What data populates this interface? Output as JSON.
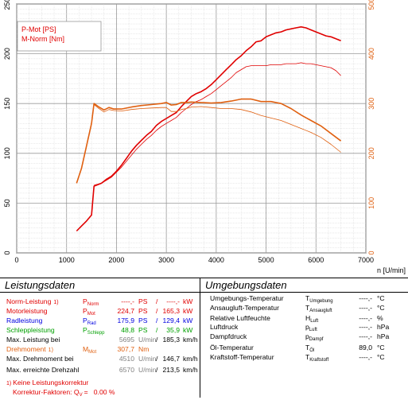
{
  "chart_data": {
    "type": "line",
    "xlabel": "n [U/min]",
    "xlim": [
      0,
      7000
    ],
    "ylim_left": [
      0,
      250
    ],
    "ylim_right": [
      0,
      500
    ],
    "x_ticks": [
      "0",
      "1000",
      "2000",
      "3000",
      "4000",
      "5000",
      "6000",
      "7000"
    ],
    "y_left_ticks": [
      "0",
      "50",
      "100",
      "150",
      "200",
      "250"
    ],
    "y_right_ticks": [
      "0",
      "100",
      "200",
      "300",
      "400",
      "500"
    ],
    "grid": true,
    "legend_position": "top-left",
    "legend": [
      "P-Mot [PS]",
      "M-Norm [Nm]"
    ],
    "series": [
      {
        "name": "P-Mot [PS]",
        "axis": "left",
        "color": "#e00000",
        "width": 1.6,
        "x": [
          1200,
          1300,
          1400,
          1500,
          1550,
          1700,
          1800,
          1900,
          2000,
          2100,
          2200,
          2300,
          2400,
          2500,
          2600,
          2700,
          2800,
          2900,
          3000,
          3100,
          3200,
          3300,
          3400,
          3500,
          3600,
          3700,
          3800,
          3900,
          4000,
          4100,
          4200,
          4300,
          4400,
          4500,
          4600,
          4700,
          4800,
          4900,
          5000,
          5100,
          5200,
          5300,
          5400,
          5500,
          5600,
          5700,
          5800,
          5900,
          6000,
          6100,
          6200,
          6300,
          6400,
          6500
        ],
        "y": [
          22,
          27,
          32,
          38,
          67,
          70,
          74,
          77,
          82,
          88,
          95,
          102,
          108,
          113,
          118,
          122,
          128,
          132,
          135,
          138,
          141,
          147,
          152,
          157,
          160,
          162,
          165,
          169,
          174,
          179,
          184,
          189,
          194,
          198,
          203,
          207,
          212,
          213,
          217,
          219,
          221,
          222,
          224,
          225,
          226,
          227,
          226,
          224,
          222,
          220,
          218,
          217,
          215,
          213
        ]
      },
      {
        "name": "",
        "axis": "left",
        "color": "#e00000",
        "width": 0.8,
        "x": [
          1550,
          1700,
          1800,
          1900,
          2000,
          2100,
          2200,
          2300,
          2400,
          2500,
          2600,
          2700,
          2800,
          2900,
          3000,
          3100,
          3200,
          3300,
          3400,
          3500,
          3600,
          3700,
          3800,
          3900,
          4000,
          4100,
          4200,
          4300,
          4400,
          4500,
          4600,
          4700,
          4800,
          4900,
          5000,
          5100,
          5200,
          5300,
          5400,
          5500,
          5600,
          5700,
          5800,
          5900,
          6000,
          6100,
          6200,
          6300,
          6400,
          6500
        ],
        "y": [
          68,
          70,
          73,
          76,
          81,
          86,
          92,
          98,
          104,
          109,
          114,
          118,
          123,
          127,
          130,
          133,
          136,
          141,
          145,
          149,
          152,
          154,
          157,
          160,
          164,
          168,
          172,
          176,
          181,
          184,
          187,
          188,
          188,
          188,
          188,
          189,
          189,
          189,
          190,
          190,
          190,
          191,
          190,
          190,
          189,
          188,
          187,
          186,
          183,
          178
        ]
      },
      {
        "name": "M-Norm [Nm]",
        "axis": "right",
        "color": "#e06010",
        "width": 1.6,
        "x": [
          1200,
          1300,
          1400,
          1500,
          1550,
          1650,
          1750,
          1850,
          1950,
          2100,
          2300,
          2500,
          2700,
          2900,
          3000,
          3100,
          3200,
          3300,
          3400,
          3500,
          3700,
          3900,
          4100,
          4300,
          4500,
          4700,
          4900,
          5100,
          5300,
          5500,
          5700,
          5900,
          6100,
          6300,
          6500
        ],
        "y": [
          140,
          170,
          215,
          260,
          300,
          293,
          287,
          292,
          289,
          289,
          293,
          296,
          298,
          300,
          302,
          297,
          298,
          302,
          302,
          303,
          302,
          301,
          302,
          305,
          309,
          309,
          304,
          304,
          300,
          290,
          277,
          266,
          255,
          240,
          225
        ]
      },
      {
        "name": "",
        "axis": "right",
        "color": "#e06010",
        "width": 0.8,
        "x": [
          1550,
          1650,
          1750,
          1850,
          1950,
          2100,
          2300,
          2500,
          2700,
          2900,
          3000,
          3100,
          3200,
          3300,
          3400,
          3500,
          3700,
          3900,
          4100,
          4300,
          4500,
          4700,
          4900,
          5100,
          5300,
          5500,
          5700,
          5900,
          6100,
          6300,
          6500
        ],
        "y": [
          298,
          290,
          283,
          288,
          286,
          285,
          288,
          290,
          291,
          292,
          292,
          284,
          284,
          288,
          290,
          293,
          294,
          292,
          290,
          290,
          288,
          283,
          276,
          271,
          266,
          258,
          250,
          242,
          232,
          218,
          202
        ]
      }
    ]
  },
  "tables": {
    "left": {
      "title": "Leistungsdaten",
      "rows": [
        {
          "label": "Norm-Leistung",
          "note": "1)",
          "sym": "P",
          "sub": "Norm",
          "v1": "----,-",
          "u1": "PS",
          "sep": "/",
          "v2": "----,-",
          "u2": "kW",
          "color": "#e00000"
        },
        {
          "label": "Motorleistung",
          "sym": "P",
          "sub": "Mot",
          "v1": "224,7",
          "u1": "PS",
          "sep": "/",
          "v2": "165,3",
          "u2": "kW",
          "color": "#e00000"
        },
        {
          "label": "Radleistung",
          "sym": "P",
          "sub": "Rad",
          "v1": "175,9",
          "u1": "PS",
          "sep": "/",
          "v2": "129,4",
          "u2": "kW",
          "color": "#0000e0"
        },
        {
          "label": "Schleppleistung",
          "sym": "P",
          "sub": "Schlepp",
          "v1": "48,8",
          "u1": "PS",
          "sep": "/",
          "v2": "35,9",
          "u2": "kW",
          "color": "#00a000"
        },
        {
          "label": "Max. Leistung bei",
          "v1": "5695",
          "u1": "U/min",
          "sep": "/",
          "v2": "185,3",
          "u2": "km/h",
          "color": "#000000"
        },
        {
          "label": "Drehmoment",
          "note": "1)",
          "sym": "M",
          "sub": "Mot",
          "v1": "307,7",
          "u1": "Nm",
          "color": "#e06010"
        },
        {
          "label": "Max. Drehmoment bei",
          "v1": "4510",
          "u1": "U/min",
          "sep": "/",
          "v2": "146,7",
          "u2": "km/h",
          "color": "#000000"
        },
        {
          "label": "Max. erreichte Drehzahl",
          "v1": "6570",
          "u1": "U/min",
          "sep": "/",
          "v2": "213,5",
          "u2": "km/h",
          "color": "#000000"
        }
      ],
      "footnote1": "Keine Leistungskorrektur",
      "footnote1_mark": "1)",
      "footnote2_label": "Korrektur-Faktoren: Q",
      "footnote2_sub": "V",
      "footnote2_value": "=   0.00 %"
    },
    "right": {
      "title": "Umgebungsdaten",
      "rows": [
        {
          "label": "Umgebungs-Temperatur",
          "sym": "T",
          "sub": "Umgebung",
          "value": "----,-",
          "unit": "°C"
        },
        {
          "label": "Ansaugluft-Temperatur",
          "sym": "T",
          "sub": "Ansaugluft",
          "value": "----,-",
          "unit": "°C"
        },
        {
          "label": "Relative Luftfeuchte",
          "sym": "H",
          "sub": "Luft",
          "value": "----,-",
          "unit": "%"
        },
        {
          "label": "Luftdruck",
          "sym": "p",
          "sub": "Luft",
          "value": "----,-",
          "unit": "hPa"
        },
        {
          "label": "Dampfdruck",
          "sym": "p",
          "sub": "Dampf",
          "value": "----,-",
          "unit": "hPa"
        },
        {
          "label": "Öl-Temperatur",
          "sym": "T",
          "sub": "Öl",
          "value": "89,0",
          "unit": "°C"
        },
        {
          "label": "Kraftstoff-Temperatur",
          "sym": "T",
          "sub": "Kraftstoff",
          "value": "----,-",
          "unit": "°C"
        }
      ]
    }
  }
}
